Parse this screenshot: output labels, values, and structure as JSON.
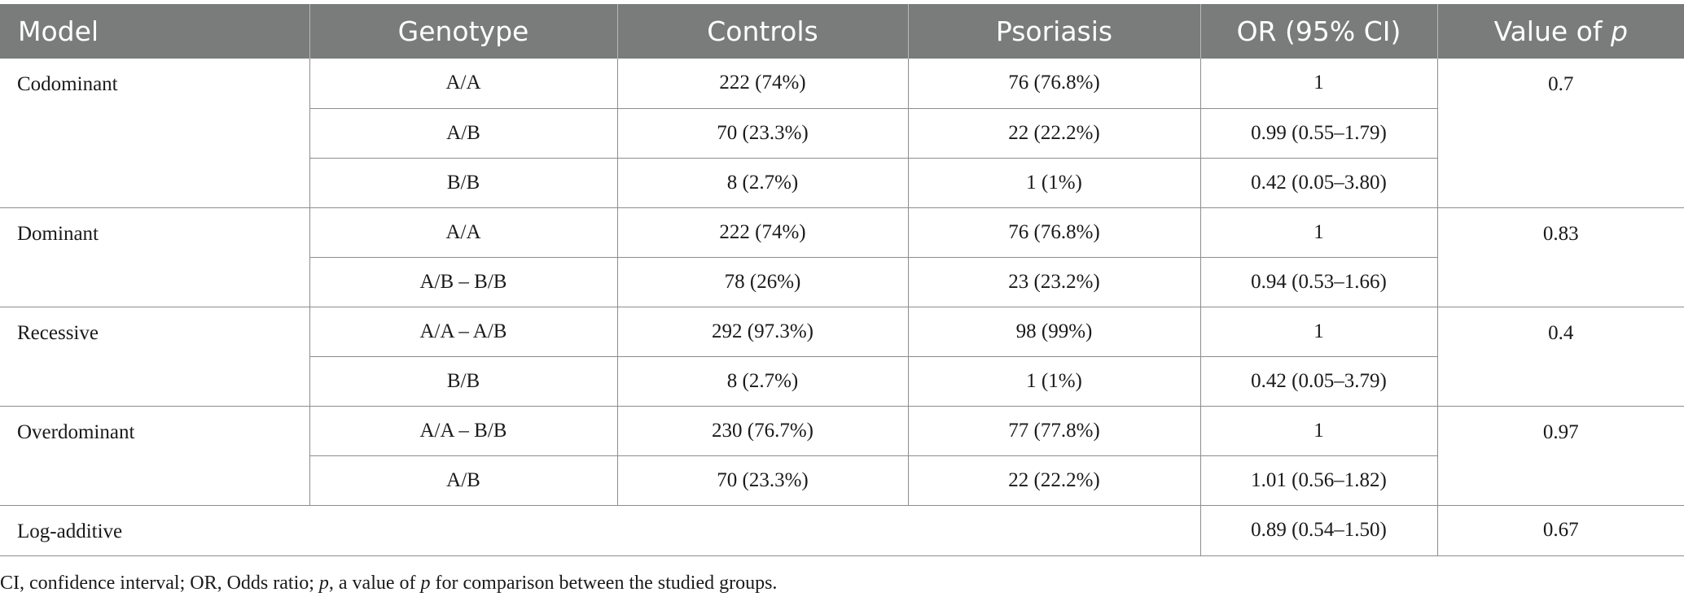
{
  "headers": {
    "model": "Model",
    "genotype": "Genotype",
    "controls": "Controls",
    "psoriasis": "Psoriasis",
    "or": "OR (95% CI)",
    "pvalue_prefix": "Value of ",
    "pvalue_symbol": "p"
  },
  "groups": [
    {
      "model": "Codominant",
      "p": "0.7",
      "rows": [
        {
          "genotype": "A/A",
          "controls": "222 (74%)",
          "psoriasis": "76 (76.8%)",
          "or": "1"
        },
        {
          "genotype": "A/B",
          "controls": "70 (23.3%)",
          "psoriasis": "22 (22.2%)",
          "or": "0.99 (0.55–1.79)"
        },
        {
          "genotype": "B/B",
          "controls": "8 (2.7%)",
          "psoriasis": "1 (1%)",
          "or": "0.42 (0.05–3.80)"
        }
      ]
    },
    {
      "model": "Dominant",
      "p": "0.83",
      "rows": [
        {
          "genotype": "A/A",
          "controls": "222 (74%)",
          "psoriasis": "76 (76.8%)",
          "or": "1"
        },
        {
          "genotype": "A/B – B/B",
          "controls": "78 (26%)",
          "psoriasis": "23 (23.2%)",
          "or": "0.94 (0.53–1.66)"
        }
      ]
    },
    {
      "model": "Recessive",
      "p": "0.4",
      "rows": [
        {
          "genotype": "A/A – A/B",
          "controls": "292 (97.3%)",
          "psoriasis": "98 (99%)",
          "or": "1"
        },
        {
          "genotype": "B/B",
          "controls": "8 (2.7%)",
          "psoriasis": "1 (1%)",
          "or": "0.42 (0.05–3.79)"
        }
      ]
    },
    {
      "model": "Overdominant",
      "p": "0.97",
      "rows": [
        {
          "genotype": "A/A – B/B",
          "controls": "230 (76.7%)",
          "psoriasis": "77 (77.8%)",
          "or": "1"
        },
        {
          "genotype": "A/B",
          "controls": "70 (23.3%)",
          "psoriasis": "22 (22.2%)",
          "or": "1.01 (0.56–1.82)"
        }
      ]
    }
  ],
  "log_additive": {
    "model": "Log-additive",
    "or": "0.89 (0.54–1.50)",
    "p": "0.67"
  },
  "footnote": {
    "part1": "CI, confidence interval; OR, Odds ratio; ",
    "p_symbol": "p",
    "part2": ", a value of ",
    "p_symbol2": "p",
    "part3": " for comparison between the studied groups."
  }
}
